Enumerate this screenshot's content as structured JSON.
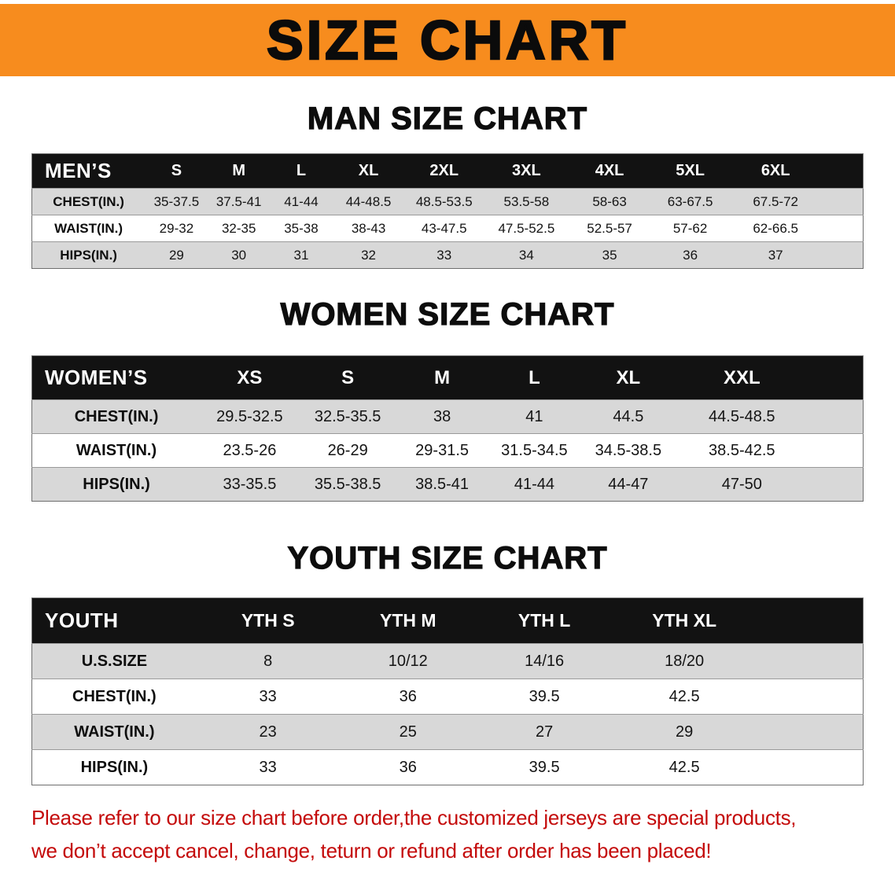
{
  "banner": {
    "title": "SIZE CHART",
    "background_color": "#F78C1E"
  },
  "headings": {
    "men": "MAN SIZE CHART",
    "women": "WOMEN SIZE CHART",
    "youth": "YOUTH SIZE CHART"
  },
  "tables": [
    {
      "id": "men",
      "header": [
        "MEN’S",
        "S",
        "M",
        "L",
        "XL",
        "2XL",
        "3XL",
        "4XL",
        "5XL",
        "6XL"
      ],
      "rows": [
        {
          "label": "CHEST(IN.)",
          "values": [
            "35-37.5",
            "37.5-41",
            "41-44",
            "44-48.5",
            "48.5-53.5",
            "53.5-58",
            "58-63",
            "63-67.5",
            "67.5-72"
          ]
        },
        {
          "label": "WAIST(IN.)",
          "values": [
            "29-32",
            "32-35",
            "35-38",
            "38-43",
            "43-47.5",
            "47.5-52.5",
            "52.5-57",
            "57-62",
            "62-66.5"
          ]
        },
        {
          "label": "HIPS(IN.)",
          "values": [
            "29",
            "30",
            "31",
            "32",
            "33",
            "34",
            "35",
            "36",
            "37"
          ]
        }
      ]
    },
    {
      "id": "women",
      "header": [
        "WOMEN’S",
        "XS",
        "S",
        "M",
        "L",
        "XL",
        "XXL"
      ],
      "rows": [
        {
          "label": "CHEST(IN.)",
          "values": [
            "29.5-32.5",
            "32.5-35.5",
            "38",
            "41",
            "44.5",
            "44.5-48.5"
          ]
        },
        {
          "label": "WAIST(IN.)",
          "values": [
            "23.5-26",
            "26-29",
            "29-31.5",
            "31.5-34.5",
            "34.5-38.5",
            "38.5-42.5"
          ]
        },
        {
          "label": "HIPS(IN.)",
          "values": [
            "33-35.5",
            "35.5-38.5",
            "38.5-41",
            "41-44",
            "44-47",
            "47-50"
          ]
        }
      ]
    },
    {
      "id": "youth",
      "header": [
        "YOUTH",
        "YTH S",
        "YTH M",
        "YTH L",
        "YTH XL"
      ],
      "rows": [
        {
          "label": "U.S.SIZE",
          "values": [
            "8",
            "10/12",
            "14/16",
            "18/20"
          ]
        },
        {
          "label": "CHEST(IN.)",
          "values": [
            "33",
            "36",
            "39.5",
            "42.5"
          ]
        },
        {
          "label": "WAIST(IN.)",
          "values": [
            "23",
            "25",
            "27",
            "29"
          ]
        },
        {
          "label": "HIPS(IN.)",
          "values": [
            "33",
            "36",
            "39.5",
            "42.5"
          ]
        }
      ]
    }
  ],
  "colors": {
    "table_header_bg": "#121212",
    "row_stripe": "#D8D8D8",
    "notice_text": "#C40A0A"
  },
  "notice": {
    "line1": "Please refer to our size chart before order,the customized jerseys are special products,",
    "line2": "we don’t accept cancel, change, teturn or refund after order has been placed!"
  }
}
